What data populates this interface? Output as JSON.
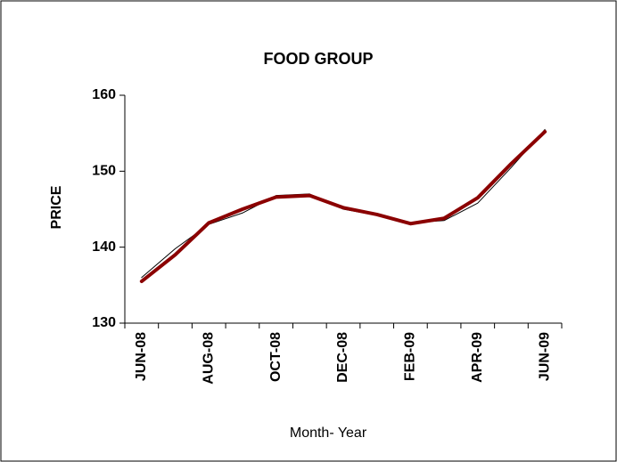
{
  "chart_data": {
    "type": "line",
    "title": "FOOD GROUP",
    "y_label": "PRICE",
    "x_label": "Month- Year",
    "categories": [
      "JUN-08",
      null,
      "AUG-08",
      null,
      "OCT-08",
      null,
      "DEC-08",
      null,
      "FEB-09",
      null,
      "APR-09",
      null,
      "JUN-09"
    ],
    "series": [
      {
        "color": "#000000",
        "width": 1,
        "values": [
          136,
          139.8,
          143,
          144.5,
          146.8,
          147,
          145,
          144.2,
          143.2,
          143.5,
          145.8,
          150.5,
          155.5
        ]
      },
      {
        "color": "#8b0000",
        "width": 4,
        "values": [
          135.5,
          139,
          143.2,
          145,
          146.6,
          146.8,
          145.2,
          144.3,
          143.1,
          143.8,
          146.5,
          151,
          155.2
        ]
      }
    ],
    "ylim": [
      130,
      160
    ],
    "yticks": [
      130,
      140,
      150,
      160
    ]
  }
}
